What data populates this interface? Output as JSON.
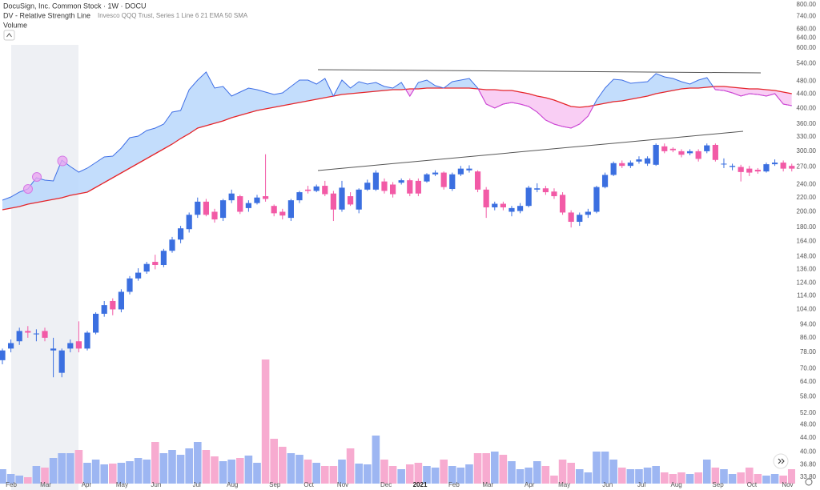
{
  "chart_data": {
    "type": "candlestick",
    "title": "DocuSign, Inc. Common Stock · 1W · DOCU",
    "indicator": {
      "name": "DV - Relative Strength Line",
      "settings": "Invesco QQQ Trust, Series 1 Line 6 21 EMA 50 SMA"
    },
    "log_scale": true,
    "up_color": "#3b6fe0",
    "down_color": "#f25aa6",
    "open": [
      74,
      80,
      84,
      90,
      88,
      90,
      79,
      68,
      80,
      84,
      80,
      89,
      101,
      110,
      104,
      117,
      128,
      134,
      143,
      140,
      154,
      166,
      178,
      196,
      214,
      200,
      192,
      216,
      222,
      205,
      212,
      222,
      208,
      200,
      192,
      216,
      232,
      230,
      238,
      226,
      203,
      222,
      203,
      232,
      232,
      245,
      240,
      243,
      247,
      246,
      245,
      257,
      260,
      233,
      257,
      264,
      262,
      232,
      206,
      211,
      200,
      201,
      208,
      232,
      234,
      229,
      224,
      199,
      187,
      196,
      200,
      236,
      256,
      277,
      272,
      280,
      276,
      274,
      310,
      305,
      300,
      296,
      300,
      300,
      313,
      275,
      270,
      270,
      267,
      265,
      262,
      275,
      278,
      272
    ],
    "high": [
      80,
      85,
      92,
      93,
      91,
      92,
      86,
      80,
      85,
      96,
      90,
      102,
      110,
      112,
      119,
      130,
      137,
      143,
      150,
      156,
      169,
      182,
      199,
      220,
      218,
      204,
      218,
      232,
      224,
      216,
      224,
      294,
      210,
      204,
      218,
      230,
      238,
      240,
      246,
      230,
      246,
      228,
      234,
      248,
      264,
      250,
      244,
      250,
      250,
      250,
      259,
      264,
      262,
      260,
      272,
      273,
      264,
      236,
      214,
      214,
      208,
      212,
      238,
      242,
      238,
      234,
      228,
      202,
      199,
      204,
      238,
      260,
      280,
      282,
      282,
      290,
      290,
      316,
      316,
      308,
      304,
      304,
      304,
      316,
      316,
      286,
      276,
      274,
      272,
      268,
      278,
      284,
      282,
      276
    ],
    "low": [
      72,
      78,
      82,
      86,
      84,
      84,
      66,
      66,
      78,
      78,
      79,
      88,
      99,
      100,
      102,
      115,
      126,
      132,
      136,
      138,
      152,
      162,
      174,
      192,
      194,
      186,
      188,
      212,
      197,
      200,
      210,
      214,
      194,
      190,
      188,
      212,
      226,
      228,
      222,
      188,
      200,
      208,
      198,
      230,
      230,
      226,
      220,
      240,
      222,
      222,
      243,
      254,
      232,
      230,
      254,
      260,
      228,
      192,
      202,
      202,
      194,
      198,
      206,
      228,
      224,
      218,
      196,
      180,
      182,
      192,
      198,
      234,
      254,
      268,
      268,
      276,
      272,
      272,
      296,
      298,
      288,
      292,
      280,
      296,
      280,
      268,
      264,
      245,
      254,
      258,
      260,
      272,
      262,
      262
    ],
    "close": [
      79,
      83,
      90,
      89,
      88.5,
      86,
      80,
      79,
      83,
      80,
      89,
      101,
      107,
      104,
      117,
      128,
      133,
      141,
      140,
      154,
      166,
      179,
      196,
      214,
      196,
      190,
      216,
      226,
      200,
      212,
      220,
      218,
      198,
      195,
      216,
      228,
      230,
      237,
      225,
      203,
      235,
      210,
      232,
      243,
      260,
      230,
      225,
      247,
      226,
      226,
      257,
      260,
      236,
      257,
      267,
      267,
      232,
      206,
      211,
      206,
      205,
      208,
      235,
      234,
      228,
      222,
      199,
      187,
      196,
      200,
      236,
      256,
      277,
      272,
      278,
      284,
      286,
      313,
      300,
      302,
      293,
      300,
      285,
      312,
      283,
      276,
      272,
      261,
      260,
      262,
      275,
      278,
      267,
      267
    ],
    "volume": {
      "name": "Volume",
      "up_color": "#9db6f2",
      "down_color": "#f7abd0",
      "values": [
        18,
        12,
        10,
        8,
        22,
        20,
        32,
        38,
        38,
        42,
        26,
        30,
        24,
        25,
        26,
        28,
        32,
        30,
        52,
        38,
        42,
        36,
        44,
        52,
        42,
        34,
        28,
        30,
        32,
        35,
        26,
        155,
        56,
        46,
        38,
        36,
        30,
        26,
        22,
        22,
        30,
        44,
        25,
        24,
        60,
        30,
        22,
        18,
        24,
        26,
        22,
        20,
        30,
        22,
        20,
        24,
        38,
        38,
        40,
        36,
        28,
        18,
        20,
        28,
        22,
        10,
        30,
        26,
        18,
        14,
        40,
        40,
        30,
        20,
        18,
        18,
        20,
        22,
        14,
        12,
        14,
        12,
        14,
        30,
        20,
        18,
        12,
        14,
        20,
        12,
        10,
        12,
        10,
        18
      ]
    },
    "rs_line": {
      "color": "#3f6fe6",
      "below_color": "#e040d0",
      "values": [
        0.5,
        0.54,
        0.6,
        0.64,
        0.78,
        0.75,
        0.74,
        1.0,
        0.92,
        0.85,
        0.9,
        0.97,
        1.04,
        1.05,
        1.15,
        1.28,
        1.3,
        1.37,
        1.4,
        1.45,
        1.6,
        1.62,
        1.88,
        2.0,
        2.1,
        1.9,
        1.92,
        1.8,
        1.85,
        1.9,
        1.88,
        1.85,
        1.82,
        1.84,
        1.92,
        2.0,
        2.0,
        1.95,
        2.02,
        1.8,
        2.0,
        1.9,
        1.98,
        1.95,
        1.97,
        1.92,
        1.9,
        1.97,
        1.8,
        1.97,
        2.0,
        1.93,
        1.9,
        1.98,
        2.0,
        2.02,
        1.9,
        1.7,
        1.65,
        1.7,
        1.72,
        1.7,
        1.67,
        1.6,
        1.5,
        1.45,
        1.42,
        1.4,
        1.45,
        1.55,
        1.75,
        1.9,
        2.01,
        2.0,
        1.96,
        1.97,
        1.98,
        2.08,
        2.04,
        2.02,
        1.98,
        1.95,
        2.0,
        2.03,
        1.88,
        1.87,
        1.84,
        1.8,
        1.83,
        1.82,
        1.8,
        1.83,
        1.7,
        1.68
      ]
    },
    "moving_average": {
      "color": "#e5252a",
      "values": [
        0.38,
        0.4,
        0.42,
        0.45,
        0.47,
        0.49,
        0.51,
        0.53,
        0.56,
        0.58,
        0.6,
        0.66,
        0.72,
        0.78,
        0.84,
        0.9,
        0.96,
        1.02,
        1.08,
        1.14,
        1.2,
        1.27,
        1.33,
        1.4,
        1.43,
        1.46,
        1.49,
        1.53,
        1.56,
        1.59,
        1.62,
        1.64,
        1.66,
        1.68,
        1.7,
        1.72,
        1.74,
        1.76,
        1.78,
        1.8,
        1.82,
        1.83,
        1.84,
        1.85,
        1.86,
        1.87,
        1.88,
        1.88,
        1.89,
        1.89,
        1.9,
        1.9,
        1.9,
        1.9,
        1.9,
        1.9,
        1.89,
        1.88,
        1.88,
        1.87,
        1.87,
        1.85,
        1.83,
        1.8,
        1.78,
        1.75,
        1.71,
        1.67,
        1.66,
        1.67,
        1.69,
        1.71,
        1.73,
        1.74,
        1.76,
        1.78,
        1.8,
        1.83,
        1.85,
        1.87,
        1.89,
        1.9,
        1.9,
        1.91,
        1.92,
        1.92,
        1.91,
        1.9,
        1.89,
        1.89,
        1.88,
        1.87,
        1.85,
        1.83
      ]
    },
    "rs_lim": [
      0,
      3
    ],
    "xlim": [
      -0.283,
      93.4
    ],
    "xticks": [
      {
        "value": 1.04,
        "label": "Feb"
      },
      {
        "value": 5.1,
        "label": "Mar"
      },
      {
        "value": 9.9,
        "label": "Apr"
      },
      {
        "value": 14.1,
        "label": "May"
      },
      {
        "value": 18.1,
        "label": "Jun"
      },
      {
        "value": 22.9,
        "label": "Jul"
      },
      {
        "value": 27.1,
        "label": "Aug"
      },
      {
        "value": 32.1,
        "label": "Sep"
      },
      {
        "value": 36.1,
        "label": "Oct"
      },
      {
        "value": 40.1,
        "label": "Nov"
      },
      {
        "value": 45.2,
        "label": "Dec"
      },
      {
        "value": 49.2,
        "label": "2021"
      },
      {
        "value": 53.2,
        "label": "Feb"
      },
      {
        "value": 57.2,
        "label": "Mar"
      },
      {
        "value": 62.1,
        "label": "Apr"
      },
      {
        "value": 66.2,
        "label": "May"
      },
      {
        "value": 71.3,
        "label": "Jun"
      },
      {
        "value": 75.3,
        "label": "Jul"
      },
      {
        "value": 79.4,
        "label": "Aug"
      },
      {
        "value": 84.3,
        "label": "Sep"
      },
      {
        "value": 88.3,
        "label": "Oct"
      },
      {
        "value": 92.5,
        "label": "Nov"
      }
    ],
    "ylim": [
      33.8,
      800
    ],
    "yticks": [
      {
        "value": 800,
        "label": "800.00"
      },
      {
        "value": 740,
        "label": "740.00"
      },
      {
        "value": 680,
        "label": "680.00"
      },
      {
        "value": 640,
        "label": "640.00"
      },
      {
        "value": 600,
        "label": "600.00"
      },
      {
        "value": 540,
        "label": "540.00"
      },
      {
        "value": 480,
        "label": "480.00"
      },
      {
        "value": 440,
        "label": "440.00"
      },
      {
        "value": 400,
        "label": "400.00"
      },
      {
        "value": 360,
        "label": "360.00"
      },
      {
        "value": 330,
        "label": "330.00"
      },
      {
        "value": 300,
        "label": "300.00"
      },
      {
        "value": 270,
        "label": "270.00"
      },
      {
        "value": 240,
        "label": "240.00"
      },
      {
        "value": 220,
        "label": "220.00"
      },
      {
        "value": 200,
        "label": "200.00"
      },
      {
        "value": 180,
        "label": "180.00"
      },
      {
        "value": 164,
        "label": "164.00"
      },
      {
        "value": 148,
        "label": "148.00"
      },
      {
        "value": 136,
        "label": "136.00"
      },
      {
        "value": 124,
        "label": "124.00"
      },
      {
        "value": 114,
        "label": "114.00"
      },
      {
        "value": 104,
        "label": "104.00"
      },
      {
        "value": 94,
        "label": "94.00"
      },
      {
        "value": 86,
        "label": "86.00"
      },
      {
        "value": 78,
        "label": "78.00"
      },
      {
        "value": 70,
        "label": "70.00"
      },
      {
        "value": 64,
        "label": "64.00"
      },
      {
        "value": 58,
        "label": "58.00"
      },
      {
        "value": 52,
        "label": "52.00"
      },
      {
        "value": 48,
        "label": "48.00"
      },
      {
        "value": 44,
        "label": "44.00"
      },
      {
        "value": 40,
        "label": "40.00"
      },
      {
        "value": 36.8,
        "label": "36.80"
      },
      {
        "value": 33.8,
        "label": "33.80"
      }
    ]
  }
}
